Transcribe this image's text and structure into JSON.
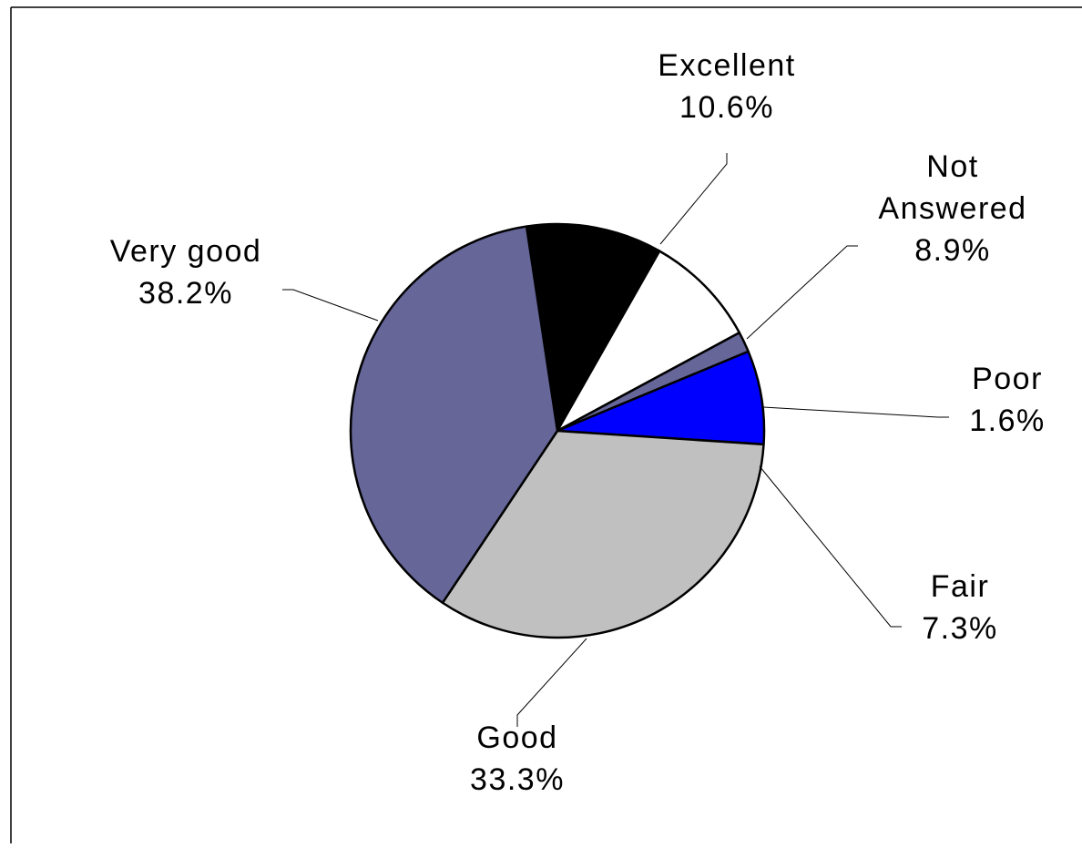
{
  "chart_data": {
    "type": "pie",
    "start_angle_deg": -8.6,
    "direction": "clockwise",
    "slices": [
      {
        "label": "Excellent",
        "value": 10.6,
        "value_label": "10.6%",
        "color": "#000000"
      },
      {
        "label": "Not Answered",
        "label_lines": [
          "Not",
          "Answered"
        ],
        "value": 8.9,
        "value_label": "8.9%",
        "color": "#ffffff"
      },
      {
        "label": "Poor",
        "value": 1.6,
        "value_label": "1.6%",
        "color": "#666699"
      },
      {
        "label": "Fair",
        "value": 7.3,
        "value_label": "7.3%",
        "color": "#0000ff"
      },
      {
        "label": "Good",
        "value": 33.3,
        "value_label": "33.3%",
        "color": "#c0c0c0"
      },
      {
        "label": "Very good",
        "value": 38.2,
        "value_label": "38.2%",
        "color": "#666699"
      }
    ],
    "title": "",
    "legend": "none"
  }
}
